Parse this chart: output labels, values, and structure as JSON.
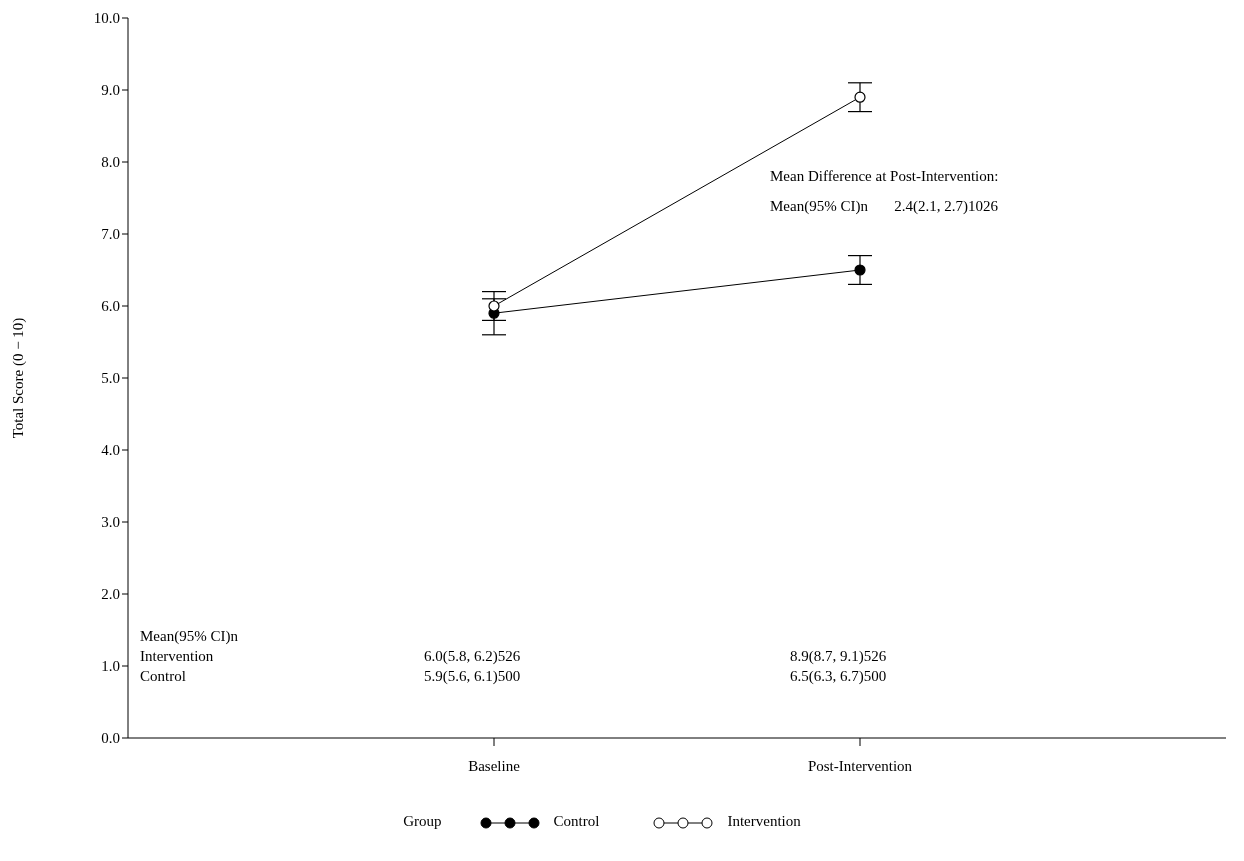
{
  "chart_data": {
    "type": "line",
    "categories": [
      "Baseline",
      "Post-Intervention"
    ],
    "ylabel": "Total Score (0 − 10)",
    "ylim": [
      0,
      10
    ],
    "yticks": [
      {
        "value": 0,
        "label": "0.0"
      },
      {
        "value": 1,
        "label": "1.0"
      },
      {
        "value": 2,
        "label": "2.0"
      },
      {
        "value": 3,
        "label": "3.0"
      },
      {
        "value": 4,
        "label": "4.0"
      },
      {
        "value": 5,
        "label": "5.0"
      },
      {
        "value": 6,
        "label": "6.0"
      },
      {
        "value": 7,
        "label": "7.0"
      },
      {
        "value": 8,
        "label": "8.0"
      },
      {
        "value": 9,
        "label": "9.0"
      },
      {
        "value": 10,
        "label": "10.0"
      }
    ],
    "series": [
      {
        "name": "Control",
        "color": "#000000",
        "values": [
          5.9,
          6.5
        ],
        "errors": [
          [
            5.6,
            6.1
          ],
          [
            6.3,
            6.7
          ]
        ]
      },
      {
        "name": "Intervention",
        "color": "#000000",
        "values": [
          6.0,
          8.9
        ],
        "errors": [
          [
            5.8,
            6.2
          ],
          [
            8.7,
            9.1
          ]
        ]
      }
    ],
    "legend": "bottom",
    "legend_title": "Group",
    "marker": "circle",
    "grid": false,
    "annotations": [
      "Mean Difference at Post-Intervention:",
      "Mean(95% CI)n       2.4(2.1, 2.7)1026",
      "Mean(95% CI)n",
      "6.0(5.8, 6.2)526",
      "8.9(8.7, 9.1)526",
      "5.9(5.6, 6.1)500",
      "6.5(6.3, 6.7)500"
    ]
  }
}
